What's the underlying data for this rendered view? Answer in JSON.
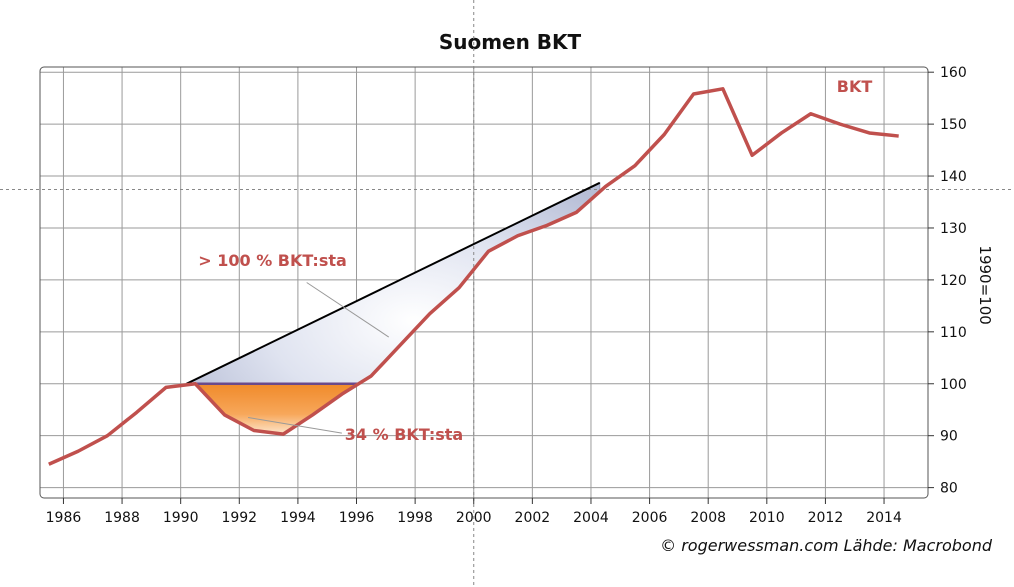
{
  "chart_data": {
    "type": "line",
    "title": "Suomen BKT",
    "ylabel": "1990=100",
    "xlim": [
      1985.2,
      2015.5
    ],
    "ylim": [
      78,
      161
    ],
    "xticks": [
      1986,
      1988,
      1990,
      1992,
      1994,
      1996,
      1998,
      2000,
      2002,
      2004,
      2006,
      2008,
      2010,
      2012,
      2014
    ],
    "yticks": [
      80,
      90,
      100,
      110,
      120,
      130,
      140,
      150,
      160
    ],
    "grid": true,
    "series": [
      {
        "name": "BKT",
        "color": "#c0504d",
        "x": [
          1985.5,
          1986.5,
          1987.5,
          1988.5,
          1989.5,
          1990.5,
          1991.5,
          1992.5,
          1993.5,
          1994.5,
          1995.5,
          1996.5,
          1997.5,
          1998.5,
          1999.5,
          2000.5,
          2001.5,
          2002.5,
          2003.5,
          2004.5,
          2005.5,
          2006.5,
          2007.5,
          2008.5,
          2009.5,
          2010.5,
          2011.5,
          2012.5,
          2013.5,
          2014.5
        ],
        "y": [
          84.5,
          87,
          90,
          94.5,
          99.3,
          100,
          94,
          91,
          90.3,
          94,
          98,
          101.5,
          107.5,
          113.5,
          118.5,
          125.5,
          128.5,
          130.5,
          133,
          138,
          142,
          148,
          155.8,
          156.8,
          144,
          148.3,
          152,
          150,
          148.3,
          147.7
        ]
      }
    ],
    "trend_line": {
      "from": [
        1990.2,
        100
      ],
      "to": [
        2004.3,
        138.7
      ],
      "color": "#000000"
    },
    "shaded_regions": [
      {
        "label": "> 100 % BKT:sta",
        "color": "#c8d0e4"
      },
      {
        "label": "34 % BKT:sta",
        "color": "#f39a3c"
      }
    ],
    "annotations": {
      "series_label": "BKT",
      "gain_label": "> 100 % BKT:sta",
      "loss_label": "34 % BKT:sta"
    },
    "crosshair": {
      "x": 2000,
      "y": 137.4
    }
  },
  "credit": "© rogerwessman.com Lähde: Macrobond"
}
